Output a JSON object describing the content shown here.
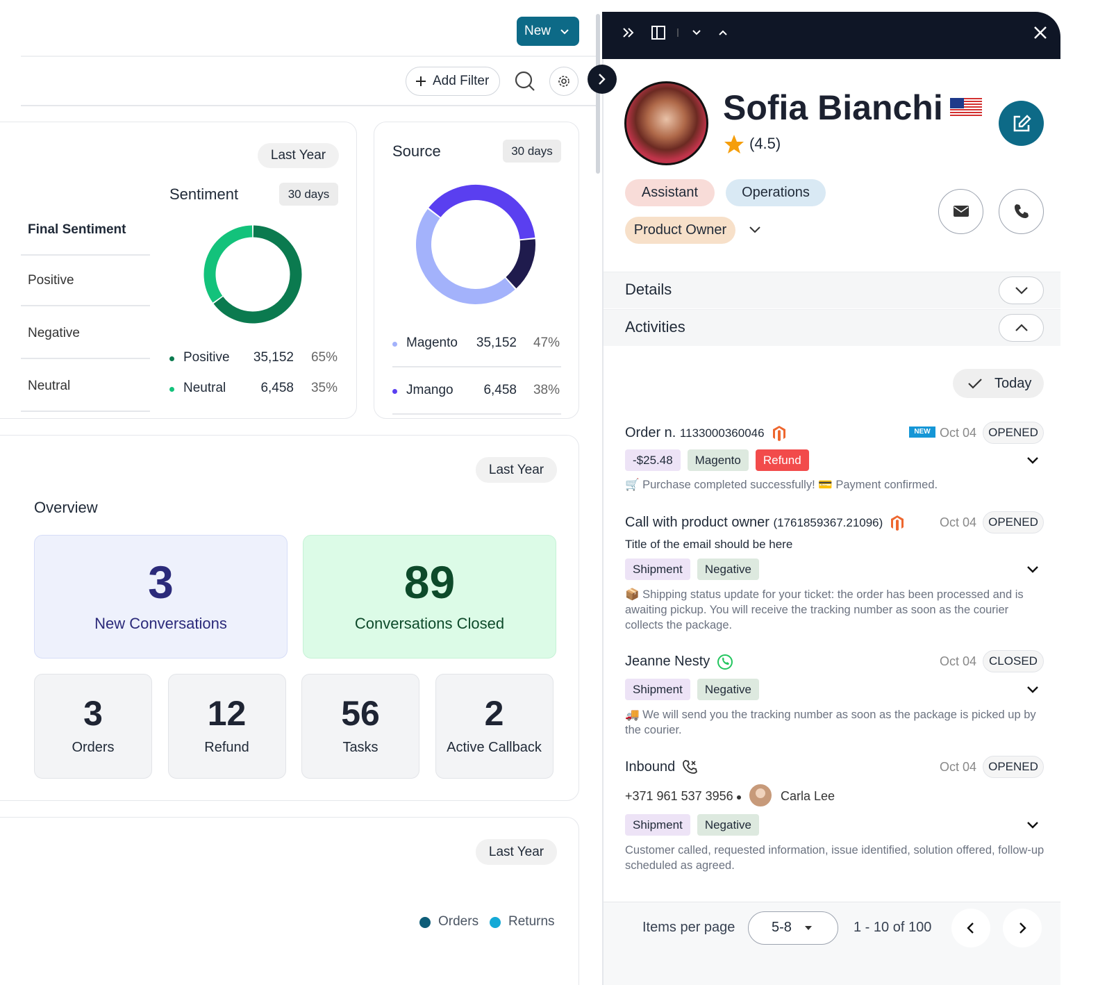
{
  "toolbar": {
    "new_button": "New",
    "add_filter": "Add Filter"
  },
  "sentiment_card": {
    "period": "Last Year",
    "filters": [
      "Final Sentiment",
      "Positive",
      "Negative",
      "Neutral"
    ]
  },
  "chart_data": [
    {
      "type": "pie",
      "title": "Sentiment",
      "badge": "30 days",
      "categories": [
        "Positive",
        "Neutral"
      ],
      "values": [
        65,
        35
      ],
      "value_labels": [
        "65%",
        "35%"
      ],
      "counts": [
        "35,152",
        "6,458"
      ],
      "colors": [
        "#0b7a4f",
        "#13c27b"
      ]
    },
    {
      "type": "pie",
      "title": "Source",
      "badge": "30 days",
      "categories": [
        "Magento",
        "Jmango",
        null
      ],
      "values": [
        47,
        38,
        15
      ],
      "value_labels": [
        "47%",
        "38%",
        null
      ],
      "counts": [
        "35,152",
        "6,458",
        null
      ],
      "colors": [
        "#a3b2fb",
        "#5a3ff0",
        "#1f1b4d"
      ]
    }
  ],
  "overview": {
    "period": "Last Year",
    "title": "Overview",
    "highlights": [
      {
        "value": "3",
        "label": "New Conversations"
      },
      {
        "value": "89",
        "label": "Conversations Closed"
      }
    ],
    "stats": [
      {
        "value": "3",
        "label": "Orders"
      },
      {
        "value": "12",
        "label": "Refund"
      },
      {
        "value": "56",
        "label": "Tasks"
      },
      {
        "value": "2",
        "label": "Active Callback"
      }
    ]
  },
  "bottom_card": {
    "period": "Last Year",
    "legend": [
      "Orders",
      "Returns"
    ]
  },
  "profile": {
    "name": "Sofia Bianchi",
    "rating": "(4.5)",
    "tags": [
      "Assistant",
      "Operations",
      "Product Owner"
    ]
  },
  "sections": [
    "Details",
    "Activities"
  ],
  "activities": {
    "filter": "Today",
    "items": [
      {
        "title": "Order n.",
        "ref": "1133000360046",
        "badge": "NEW",
        "date": "Oct 04",
        "status": "OPENED",
        "subtitle": null,
        "chips": [
          "-$25.48",
          "Magento",
          "Refund"
        ],
        "text": "🛒 Purchase completed successfully! 💳 Payment confirmed."
      },
      {
        "title": "Call with product owner",
        "ref": "(1761859367.21096)",
        "badge": null,
        "date": "Oct 04",
        "status": "OPENED",
        "subtitle": "Title of the email should be here",
        "chips": [
          "Shipment",
          "Negative"
        ],
        "text": "📦 Shipping status update for your ticket: the order has been processed and is awaiting pickup. You will receive the tracking number as soon as the courier collects the package."
      },
      {
        "title": "Jeanne Nesty",
        "ref": null,
        "badge": null,
        "date": "Oct 04",
        "status": "CLOSED",
        "subtitle": null,
        "chips": [
          "Shipment",
          "Negative"
        ],
        "text": "🚚 We will send you the tracking number as soon as the package is picked up by the courier."
      },
      {
        "title": "Inbound",
        "ref": null,
        "badge": null,
        "date": "Oct 04",
        "status": "OPENED",
        "phone": "+371 961 537 3956",
        "contact": "Carla Lee",
        "chips": [
          "Shipment",
          "Negative"
        ],
        "text": "Customer called, requested information, issue identified, solution offered, follow-up scheduled as agreed."
      }
    ]
  },
  "pagination": {
    "label": "Items per page",
    "per_page": "5-8",
    "range": "1 - 10 of",
    "total": "100"
  }
}
